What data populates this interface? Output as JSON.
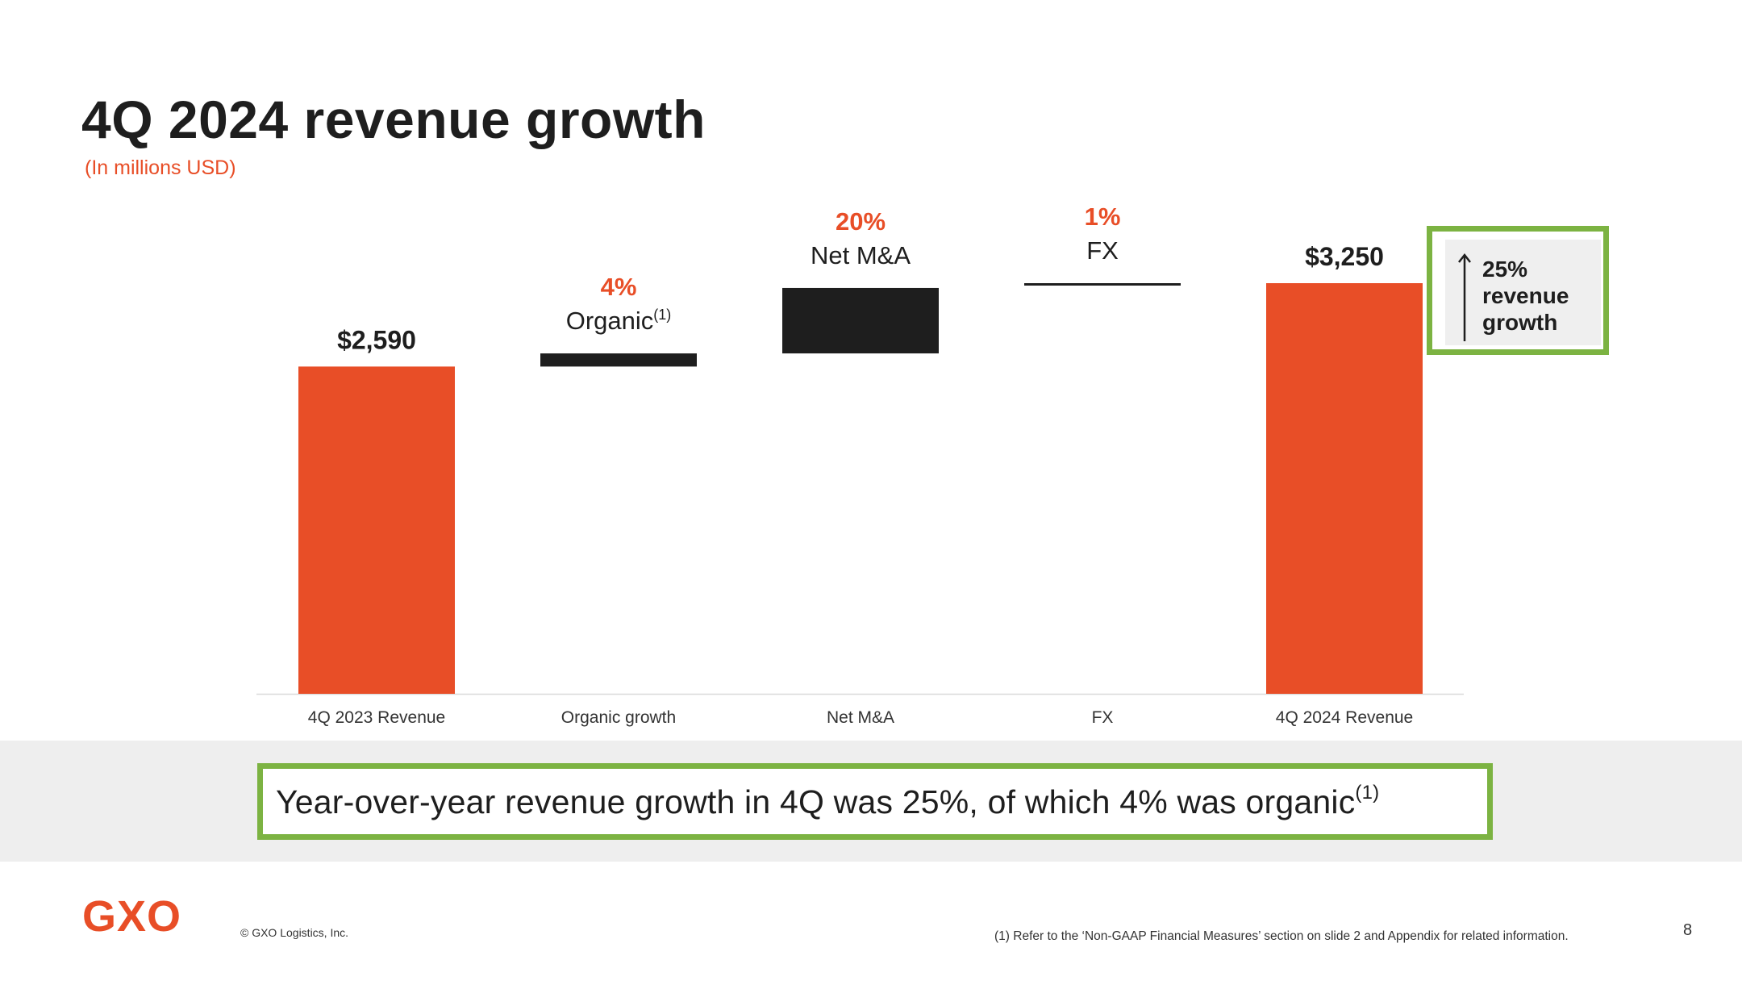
{
  "slide": {
    "title": "4Q 2024 revenue growth",
    "subtitle": "(In millions USD)",
    "growth_box": {
      "percent": "25%",
      "line2": "revenue",
      "line3": "growth"
    },
    "callout": {
      "text": "Year-over-year revenue growth in 4Q was 25%, of which 4% was organic",
      "footnote_marker": "(1)"
    },
    "footer": {
      "logo": "GXO",
      "copyright": "© GXO Logistics, Inc.",
      "footnote": "(1) Refer to the ‘Non-GAAP Financial Measures’ section on slide 2 and Appendix for related information.",
      "page_number": "8"
    }
  },
  "colors": {
    "accent": "#e84e27",
    "dark": "#1e1e1e",
    "highlight_border": "#7cb342",
    "band": "#eeeeee"
  },
  "chart_data": {
    "type": "bar",
    "subtype": "waterfall",
    "categories": [
      "4Q 2023 Revenue",
      "Organic growth",
      "Net M&A",
      "FX",
      "4Q 2024 Revenue"
    ],
    "values": [
      2590,
      104,
      518,
      38,
      3250
    ],
    "kinds": [
      "total",
      "delta",
      "delta",
      "delta",
      "total"
    ],
    "value_labels": [
      "$2,590",
      "",
      "",
      "",
      "$3,250"
    ],
    "percent_labels": [
      "",
      "4%",
      "20%",
      "1%",
      ""
    ],
    "step_names": [
      "",
      "Organic",
      "Net M&A",
      "FX",
      ""
    ],
    "step_name_markers": [
      "",
      "(1)",
      "",
      "",
      ""
    ],
    "ylim": [
      0,
      3250
    ],
    "grid": false,
    "legend": "none"
  }
}
